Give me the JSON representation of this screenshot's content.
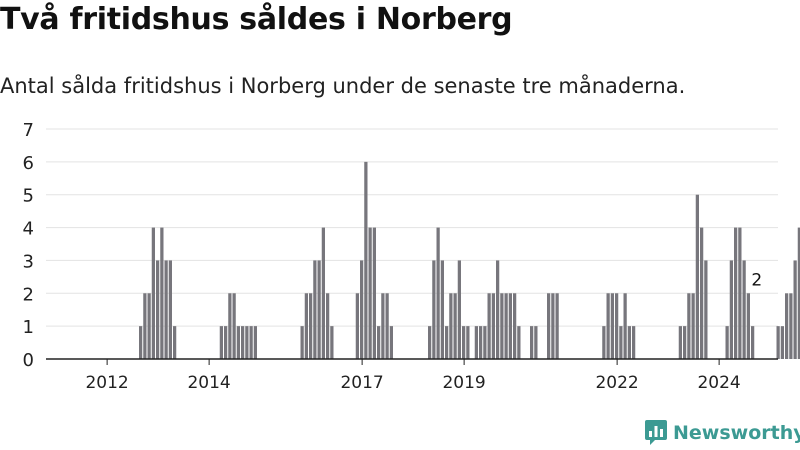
{
  "title": "Två fritidshus såldes i Norberg",
  "subtitle": "Antal sålda fritidshus i Norberg under de senaste tre månaderna.",
  "brand": {
    "name": "Newsworthy",
    "icon": "newsworthy-logo-icon",
    "color": "#3c9a93"
  },
  "colors": {
    "bar": "#77767c",
    "highlight": "#2a9d97",
    "grid": "#e3e3e3",
    "axis": "#222222"
  },
  "chart_data": {
    "type": "bar",
    "title": "",
    "xlabel": "",
    "ylabel": "",
    "ylim": [
      0,
      7
    ],
    "yticks": [
      0,
      1,
      2,
      3,
      4,
      5,
      6,
      7
    ],
    "grid": true,
    "legend": "none",
    "start": "2011-01",
    "xticks": [
      {
        "label": "2012",
        "date": "2012-01"
      },
      {
        "label": "2014",
        "date": "2014-01"
      },
      {
        "label": "2017",
        "date": "2017-01"
      },
      {
        "label": "2019",
        "date": "2019-01"
      },
      {
        "label": "2022",
        "date": "2022-01"
      },
      {
        "label": "2024",
        "date": "2024-01"
      }
    ],
    "series": [
      {
        "values": [
          0,
          0,
          0,
          0,
          0,
          0,
          0,
          0,
          0,
          0,
          0,
          0,
          0,
          0,
          0,
          0,
          0,
          0,
          0,
          0,
          1,
          2,
          2,
          4,
          3,
          4,
          3,
          3,
          1,
          0,
          0,
          0,
          0,
          0,
          0,
          0,
          0,
          0,
          0,
          1,
          1,
          2,
          2,
          1,
          1,
          1,
          1,
          1,
          0,
          0,
          0,
          0,
          0,
          0,
          0,
          0,
          0,
          0,
          1,
          2,
          2,
          3,
          3,
          4,
          2,
          1,
          0,
          0,
          0,
          0,
          0,
          2,
          3,
          6,
          4,
          4,
          1,
          2,
          2,
          1,
          0,
          0,
          0,
          0,
          0,
          0,
          0,
          0,
          1,
          3,
          4,
          3,
          1,
          2,
          2,
          3,
          1,
          1,
          0,
          1,
          1,
          1,
          2,
          2,
          3,
          2,
          2,
          2,
          2,
          1,
          0,
          0,
          1,
          1,
          0,
          0,
          2,
          2,
          2,
          0,
          0,
          0,
          0,
          0,
          0,
          0,
          0,
          0,
          0,
          1,
          2,
          2,
          2,
          1,
          2,
          1,
          1,
          0,
          0,
          0,
          0,
          0,
          0,
          0,
          0,
          0,
          0,
          1,
          1,
          2,
          2,
          5,
          4,
          3,
          0,
          0,
          0,
          0,
          1,
          3,
          4,
          4,
          3,
          2,
          1,
          0,
          0,
          0,
          0,
          0,
          1,
          1,
          2,
          2,
          3,
          4,
          3,
          2,
          1,
          0,
          0,
          0,
          0,
          0,
          0,
          1,
          1,
          1,
          0,
          0,
          0,
          0,
          0,
          2,
          2,
          3,
          2,
          3,
          4,
          2,
          2,
          3,
          4,
          2,
          2
        ]
      }
    ],
    "highlight": {
      "date": "2024-10",
      "value": 2,
      "label": "2"
    }
  }
}
